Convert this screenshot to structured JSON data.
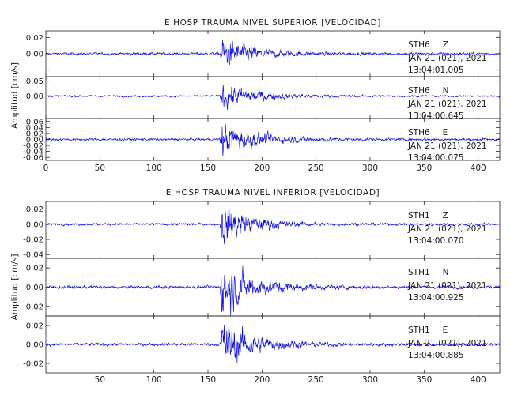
{
  "chart_data": [
    {
      "type": "line",
      "title": "E HOSP TRAUMA NIVEL SUPERIOR [VELOCIDAD]",
      "ylabel": "Amplitud [cm/s]",
      "xlim": [
        0,
        420
      ],
      "xticks": [
        0,
        50,
        100,
        150,
        200,
        250,
        300,
        350,
        400
      ],
      "x_ticklabels_shown": true,
      "grid": false,
      "series": [
        {
          "station": "STH6",
          "component": "Z",
          "date_text": "JAN 21 (021), 2021",
          "time_text": "13:04:01.005",
          "color": "#1010e0",
          "ylim": [
            -0.028,
            0.028
          ],
          "yticks": [
            -0.02,
            0.0,
            0.02
          ],
          "ytick_labels": [
            "",
            "0.00",
            "0.02"
          ],
          "trace": {
            "onset_s": 161,
            "peak_amplitude": 0.02,
            "noise_amplitude": 0.0015,
            "coda_decay_s": 28
          }
        },
        {
          "station": "STH6",
          "component": "N",
          "color": "#1010e0",
          "date_text": "JAN 21 (021), 2021",
          "time_text": "13:04:00.645",
          "ylim": [
            -0.075,
            0.065
          ],
          "yticks": [
            -0.05,
            0.0,
            0.05
          ],
          "ytick_labels": [
            "",
            "0.00",
            "0.05"
          ],
          "trace": {
            "onset_s": 161,
            "peak_amplitude": 0.045,
            "noise_amplitude": 0.003,
            "coda_decay_s": 32
          }
        },
        {
          "station": "STH6",
          "component": "E",
          "color": "#1010e0",
          "date_text": "JAN 21 (021), 2021",
          "time_text": "13:04:00.075",
          "ylim": [
            -0.07,
            0.07
          ],
          "yticks": [
            -0.06,
            -0.04,
            -0.02,
            0.0,
            0.02,
            0.04,
            0.06
          ],
          "ytick_labels": [
            "-0.06",
            "-0.04",
            "-0.02",
            "0.00",
            "0.02",
            "0.04",
            "0.06"
          ],
          "trace": {
            "onset_s": 161,
            "peak_amplitude": 0.06,
            "noise_amplitude": 0.004,
            "coda_decay_s": 30
          }
        }
      ]
    },
    {
      "type": "line",
      "title": "E HOSP TRAUMA NIVEL INFERIOR [VELOCIDAD]",
      "ylabel": "Amplitud [cm/s]",
      "xlim": [
        0,
        420
      ],
      "xticks": [
        50,
        100,
        150,
        200,
        250,
        300,
        350,
        400
      ],
      "x_ticklabels_shown": true,
      "grid": false,
      "series": [
        {
          "station": "STH1",
          "component": "Z",
          "color": "#1010e0",
          "date_text": "JAN 21 (021), 2021",
          "time_text": "13:04:00.070",
          "ylim": [
            -0.045,
            0.03
          ],
          "yticks": [
            -0.04,
            -0.02,
            0.0,
            0.02
          ],
          "ytick_labels": [
            "-0.04",
            "-0.02",
            "0.00",
            "0.02"
          ],
          "trace": {
            "onset_s": 161,
            "peak_amplitude": 0.03,
            "noise_amplitude": 0.0015,
            "coda_decay_s": 26
          }
        },
        {
          "station": "STH1",
          "component": "N",
          "color": "#1010e0",
          "date_text": "JAN 21 (021), 2021",
          "time_text": "13:04:00.925",
          "ylim": [
            -0.03,
            0.03
          ],
          "yticks": [
            -0.02,
            0.0,
            0.02
          ],
          "ytick_labels": [
            "-0.02",
            "0.00",
            "0.02"
          ],
          "trace": {
            "onset_s": 161,
            "peak_amplitude": 0.028,
            "noise_amplitude": 0.0015,
            "coda_decay_s": 30
          }
        },
        {
          "station": "STH1",
          "component": "E",
          "color": "#1010e0",
          "date_text": "JAN 21 (021), 2021",
          "time_text": "13:04:00.885",
          "ylim": [
            -0.03,
            0.03
          ],
          "yticks": [
            -0.02,
            0.0,
            0.02
          ],
          "ytick_labels": [
            "-0.02",
            "0.00",
            "0.02"
          ],
          "trace": {
            "onset_s": 161,
            "peak_amplitude": 0.028,
            "noise_amplitude": 0.0015,
            "coda_decay_s": 28
          }
        }
      ]
    }
  ]
}
